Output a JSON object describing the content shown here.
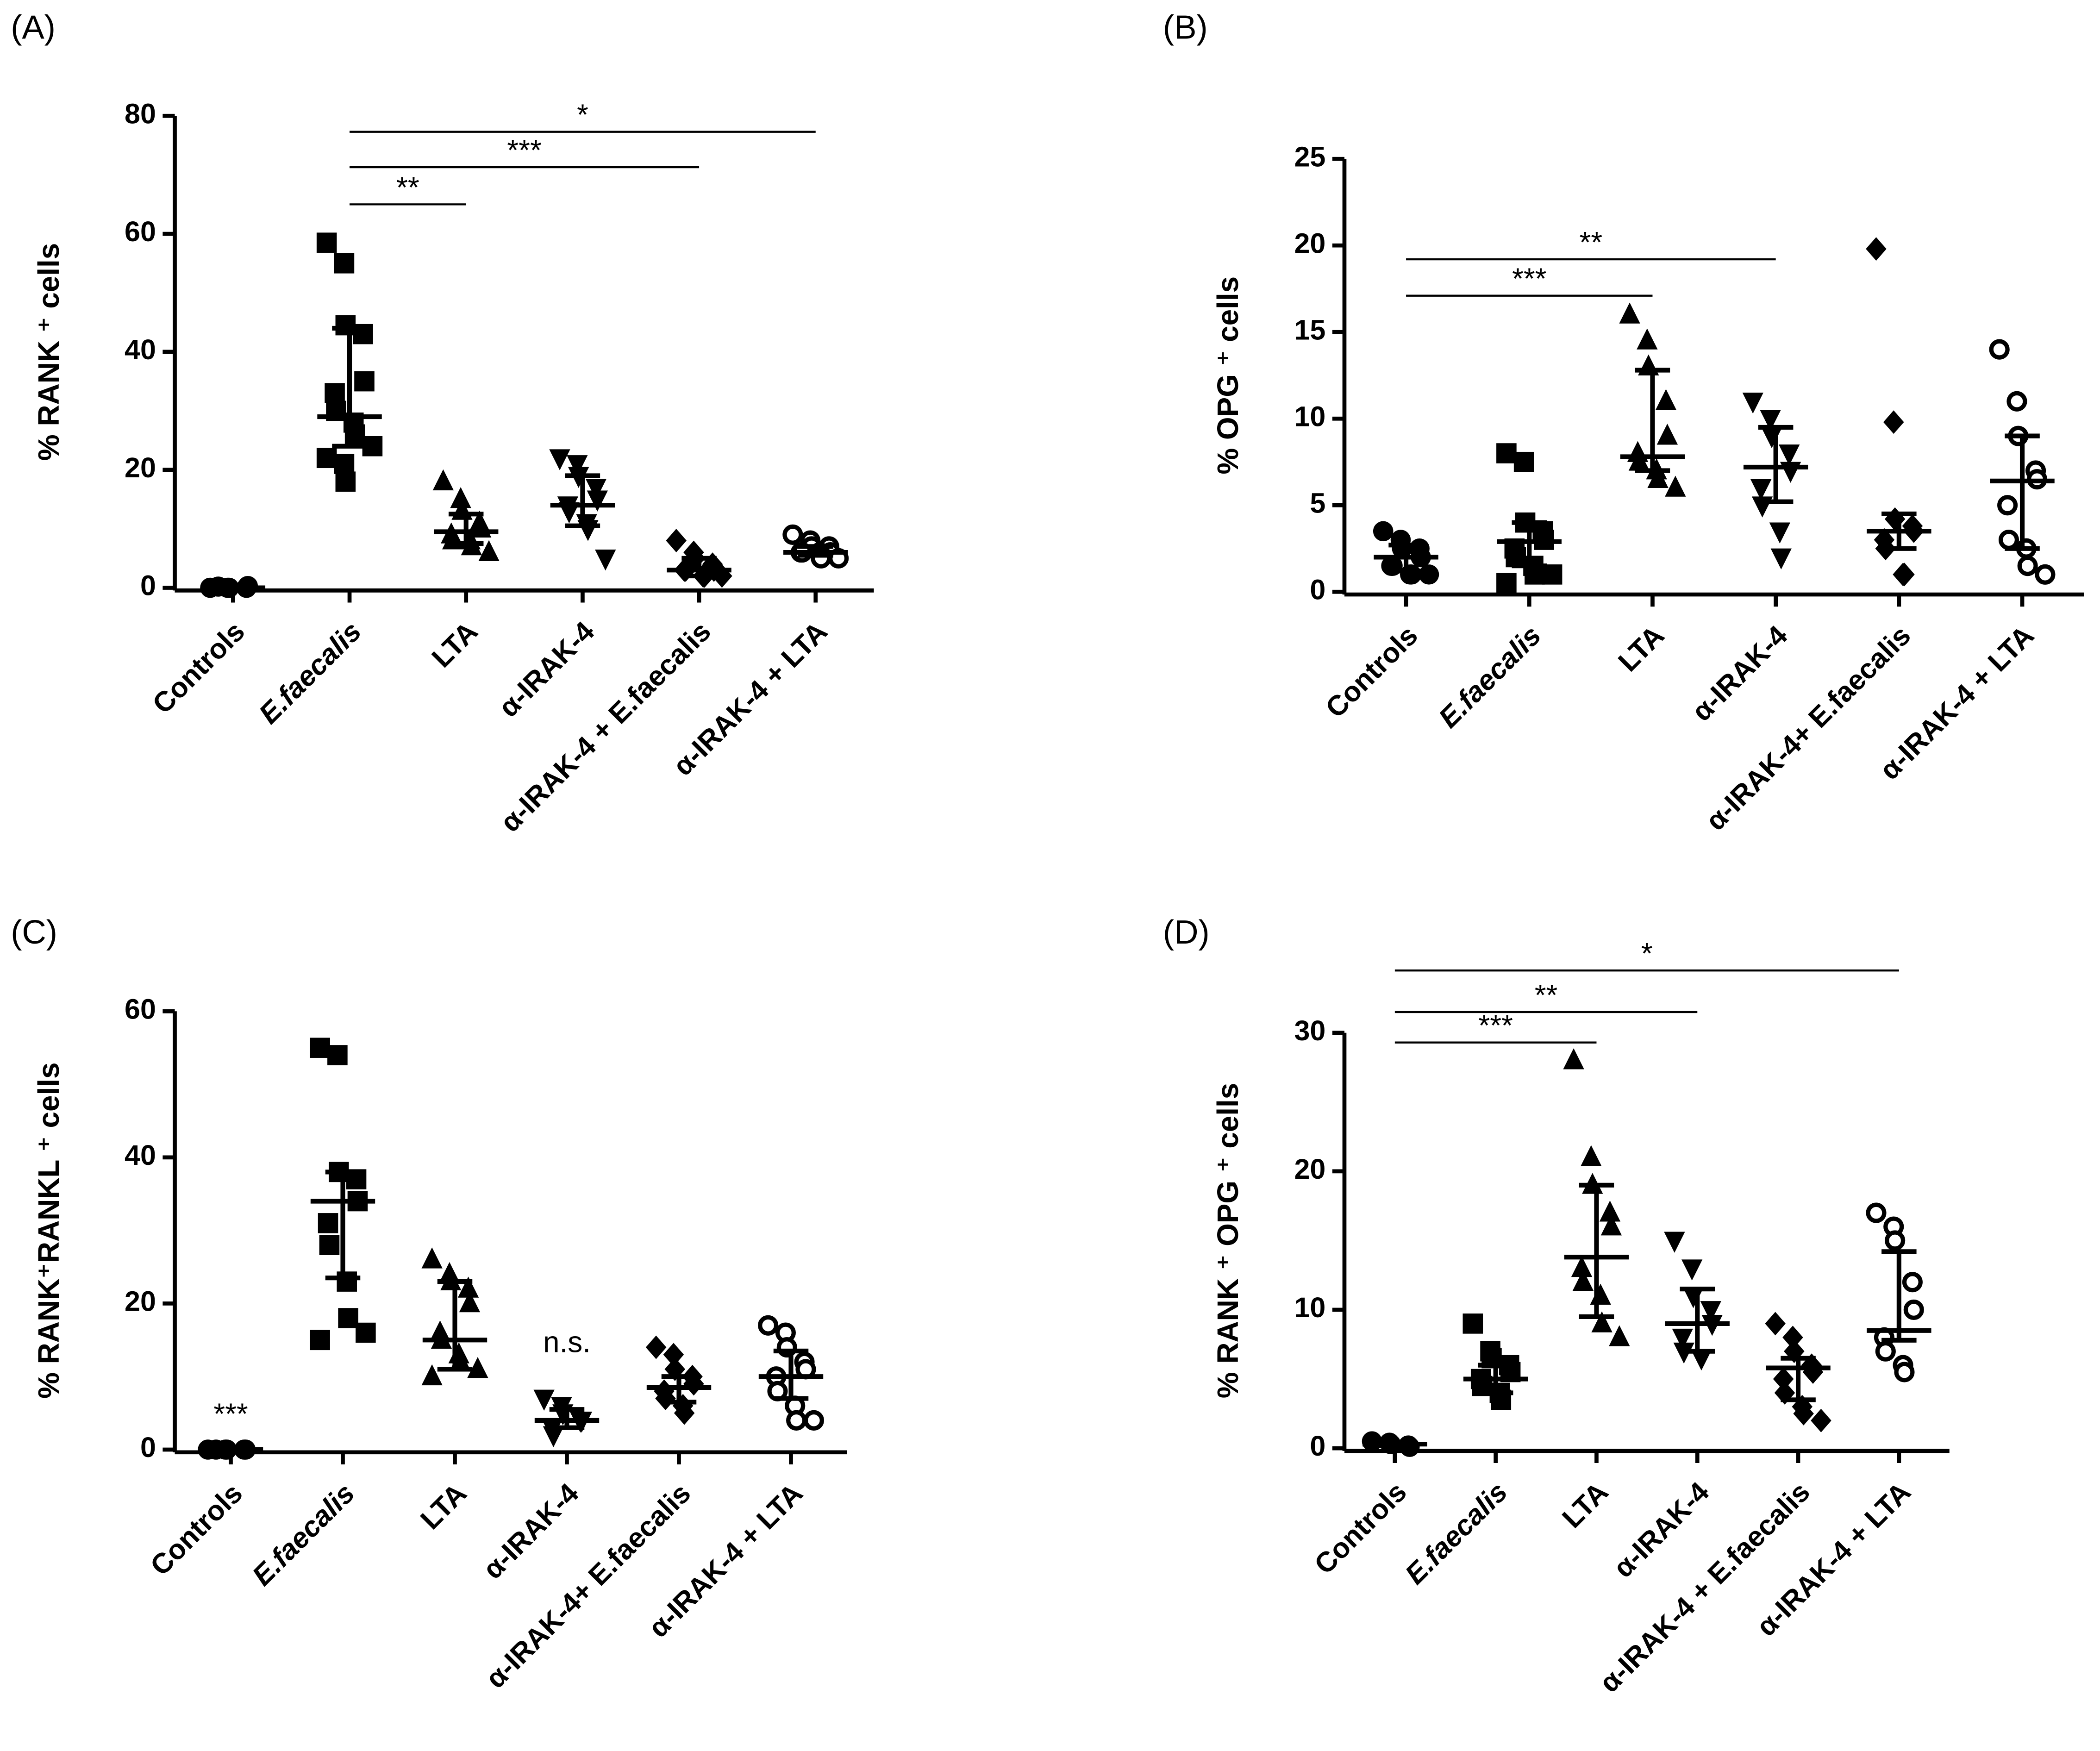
{
  "chart_data": [
    {
      "type": "scatter",
      "label": "(A)",
      "ylabel": "% RANK ⁺ cells",
      "color": "#000000",
      "categories": [
        "Controls",
        "E.faecalis",
        "LTA",
        "α-IRAK-4",
        "α-IRAK-4 + E.faecalis",
        "α-IRAK-4 + LTA"
      ],
      "markers": [
        "circle",
        "square",
        "triangle",
        "triangle-down",
        "diamond",
        "circle-open"
      ],
      "values": [
        [
          0,
          0,
          0,
          0,
          0.3,
          0.2
        ],
        [
          58.5,
          55,
          44.5,
          43,
          35,
          33,
          30,
          28,
          26,
          24,
          22,
          21,
          18
        ],
        [
          18,
          15,
          13,
          11,
          10,
          9,
          8,
          8,
          7,
          6
        ],
        [
          22,
          21,
          19,
          17,
          15,
          14,
          13,
          11,
          10,
          5
        ],
        [
          8,
          6,
          5,
          4,
          3,
          3,
          3,
          2,
          2,
          2
        ],
        [
          9,
          8,
          7,
          7,
          6,
          6,
          6,
          6,
          5,
          5
        ]
      ],
      "median": [
        0,
        29,
        9.5,
        14,
        3,
        6
      ],
      "q1": [
        0,
        24,
        7.5,
        10.5,
        2,
        5.5
      ],
      "q3": [
        0,
        44,
        12.5,
        19,
        5,
        7
      ],
      "ylim": [
        0,
        80
      ],
      "yticks": [
        0,
        20,
        40,
        60,
        80
      ],
      "annotations": [
        {
          "text": "**",
          "from": 1,
          "to": 2,
          "y": 65
        },
        {
          "text": "***",
          "from": 1,
          "to": 4,
          "y": 71.3
        },
        {
          "text": "*",
          "from": 1,
          "to": 5,
          "y": 77.3
        }
      ]
    },
    {
      "type": "scatter",
      "label": "(B)",
      "ylabel": "% OPG ⁺ cells",
      "color": "#000000",
      "categories": [
        "Controls",
        "E.faecalis",
        "LTA",
        "α-IRAK-4",
        "α-IRAK-4+ E.faecalis",
        "α-IRAK-4 + LTA"
      ],
      "markers": [
        "circle",
        "square",
        "triangle",
        "triangle-down",
        "diamond",
        "circle-open"
      ],
      "values": [
        [
          3.5,
          3,
          2.5,
          2.5,
          2,
          1.5,
          1.5,
          1,
          1,
          1
        ],
        [
          8,
          7.5,
          4,
          3.5,
          3,
          2.5,
          2,
          1.5,
          1,
          1,
          0.5
        ],
        [
          16,
          14.5,
          13,
          11,
          9,
          8,
          7.5,
          7,
          6.5,
          6
        ],
        [
          11,
          10,
          9,
          8,
          7,
          6,
          5,
          3.5,
          2
        ],
        [
          19.8,
          9.8,
          4.2,
          3.8,
          3.5,
          3,
          2.5,
          1,
          1
        ],
        [
          14,
          11,
          9,
          7,
          6.5,
          5,
          3,
          2.5,
          1.5,
          1
        ]
      ],
      "median": [
        2,
        2.9,
        7.8,
        7.2,
        3.5,
        6.4
      ],
      "q1": [
        1.2,
        1.5,
        7,
        5.2,
        2.5,
        2.5
      ],
      "q3": [
        2.7,
        4,
        12.8,
        9.5,
        4.5,
        9
      ],
      "ylim": [
        0,
        25
      ],
      "yticks": [
        0,
        5,
        10,
        15,
        20,
        25
      ],
      "annotations": [
        {
          "text": "***",
          "from": 0,
          "to": 2,
          "y": 17.1
        },
        {
          "text": "**",
          "from": 0,
          "to": 3,
          "y": 19.2
        }
      ]
    },
    {
      "type": "scatter",
      "label": "(C)",
      "ylabel": "% RANK⁺RANKL ⁺ cells",
      "color": "#000000",
      "categories": [
        "Controls",
        "E.faecalis",
        "LTA",
        "α-IRAK-4",
        "α-IRAK-4+ E.faecalis",
        "α-IRAK-4 + LTA"
      ],
      "markers": [
        "circle",
        "square",
        "triangle",
        "triangle-down",
        "diamond",
        "circle-open"
      ],
      "values": [
        [
          0,
          0,
          0,
          0,
          0,
          0
        ],
        [
          55,
          54,
          38,
          37,
          34,
          31,
          28,
          23,
          18,
          16,
          15
        ],
        [
          26,
          24,
          23,
          22,
          20,
          16,
          15,
          13,
          12,
          11,
          10
        ],
        [
          7,
          6,
          5,
          4,
          4,
          3,
          2
        ],
        [
          14,
          13,
          11,
          10,
          9,
          8,
          7,
          6,
          5
        ],
        [
          17,
          16,
          14,
          12,
          11,
          10,
          8,
          6,
          4,
          4
        ]
      ],
      "median": [
        0,
        34,
        15,
        4,
        8.5,
        10
      ],
      "q1": [
        0,
        23.5,
        11,
        3,
        6.5,
        7
      ],
      "q3": [
        0,
        38,
        23,
        5.5,
        10,
        13.5
      ],
      "ylim": [
        0,
        60
      ],
      "yticks": [
        0,
        20,
        40,
        60
      ],
      "annotations": [
        {
          "text": "***",
          "at": 0,
          "y": 4.6
        },
        {
          "text": "n.s.",
          "at": 3,
          "y": 14.4
        }
      ]
    },
    {
      "type": "scatter",
      "label": "(D)",
      "ylabel": "% RANK ⁺ OPG ⁺ cells",
      "color": "#000000",
      "categories": [
        "Controls",
        "E.faecalis",
        "LTA",
        "α-IRAK-4",
        "α-IRAK-4 + E.faecalis",
        "α-IRAK-4 + LTA"
      ],
      "markers": [
        "circle",
        "square",
        "triangle",
        "triangle-down",
        "diamond",
        "circle-open"
      ],
      "values": [
        [
          0.5,
          0.4,
          0.3,
          0.2,
          0.1
        ],
        [
          9,
          7,
          6.5,
          6,
          5.5,
          5,
          4.5,
          4,
          3.5
        ],
        [
          28,
          21,
          19,
          17,
          16,
          13,
          12,
          11,
          9,
          8
        ],
        [
          15,
          13,
          11,
          10,
          9,
          8,
          7,
          6.5
        ],
        [
          9,
          8,
          7,
          6,
          5.5,
          5,
          4,
          3,
          2.5,
          2
        ],
        [
          17,
          16,
          15,
          12,
          10,
          8,
          7,
          6,
          5.5
        ]
      ],
      "median": [
        0.3,
        5,
        13.8,
        9,
        5.8,
        8.5
      ],
      "q1": [
        0.2,
        4,
        9.5,
        7,
        3.5,
        7.8
      ],
      "q3": [
        0.4,
        6,
        19,
        11.5,
        6.5,
        14.2
      ],
      "ylim": [
        0,
        30
      ],
      "yticks": [
        0,
        10,
        20,
        30
      ],
      "annotations": [
        {
          "text": "***",
          "from": 0,
          "to": 2,
          "y": 29.3
        },
        {
          "text": "**",
          "from": 0,
          "to": 3,
          "y": 31.5
        },
        {
          "text": "*",
          "from": 0,
          "to": 5,
          "y": 34.5
        }
      ]
    }
  ]
}
